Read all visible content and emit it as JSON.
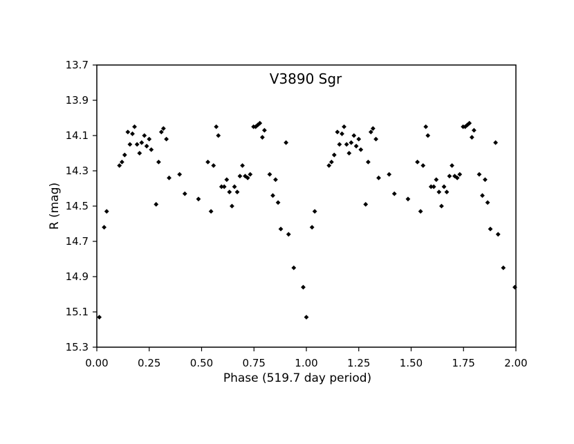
{
  "chart_data": {
    "type": "scatter",
    "title": "V3890 Sgr",
    "xlabel": "Phase (519.7 day period)",
    "ylabel": "R (mag)",
    "xlim": [
      0,
      2
    ],
    "ylim": [
      13.7,
      15.3
    ],
    "y_inverted": true,
    "grid": false,
    "legend": "none",
    "marker": "diamond",
    "marker_color": "#000000",
    "x_ticks": [
      "0.00",
      "0.25",
      "0.50",
      "0.75",
      "1.00",
      "1.25",
      "1.50",
      "1.75",
      "2.00"
    ],
    "y_ticks": [
      "13.7",
      "13.9",
      "14.1",
      "14.3",
      "14.5",
      "14.7",
      "14.9",
      "15.1",
      "15.3"
    ],
    "series": [
      {
        "points": [
          [
            0.012,
            15.13
          ],
          [
            0.035,
            14.62
          ],
          [
            0.047,
            14.53
          ],
          [
            0.108,
            14.27
          ],
          [
            0.12,
            14.25
          ],
          [
            0.133,
            14.21
          ],
          [
            0.148,
            14.08
          ],
          [
            0.158,
            14.15
          ],
          [
            0.17,
            14.09
          ],
          [
            0.18,
            14.05
          ],
          [
            0.192,
            14.15
          ],
          [
            0.204,
            14.2
          ],
          [
            0.214,
            14.14
          ],
          [
            0.227,
            14.1
          ],
          [
            0.238,
            14.16
          ],
          [
            0.25,
            14.12
          ],
          [
            0.26,
            14.18
          ],
          [
            0.283,
            14.49
          ],
          [
            0.295,
            14.25
          ],
          [
            0.308,
            14.08
          ],
          [
            0.318,
            14.06
          ],
          [
            0.332,
            14.12
          ],
          [
            0.345,
            14.34
          ],
          [
            0.395,
            14.32
          ],
          [
            0.42,
            14.43
          ],
          [
            0.485,
            14.46
          ],
          [
            0.53,
            14.25
          ],
          [
            0.545,
            14.53
          ],
          [
            0.557,
            14.27
          ],
          [
            0.57,
            14.05
          ],
          [
            0.58,
            14.1
          ],
          [
            0.595,
            14.39
          ],
          [
            0.608,
            14.39
          ],
          [
            0.62,
            14.35
          ],
          [
            0.633,
            14.42
          ],
          [
            0.645,
            14.5
          ],
          [
            0.657,
            14.39
          ],
          [
            0.67,
            14.42
          ],
          [
            0.683,
            14.33
          ],
          [
            0.695,
            14.27
          ],
          [
            0.708,
            14.33
          ],
          [
            0.72,
            14.34
          ],
          [
            0.732,
            14.32
          ],
          [
            0.748,
            14.05
          ],
          [
            0.758,
            14.05
          ],
          [
            0.768,
            14.04
          ],
          [
            0.778,
            14.03
          ],
          [
            0.79,
            14.11
          ],
          [
            0.8,
            14.07
          ],
          [
            0.825,
            14.32
          ],
          [
            0.84,
            14.44
          ],
          [
            0.853,
            14.35
          ],
          [
            0.865,
            14.48
          ],
          [
            0.878,
            14.63
          ],
          [
            0.903,
            14.14
          ],
          [
            0.915,
            14.66
          ],
          [
            0.94,
            14.85
          ],
          [
            0.985,
            14.96
          ],
          [
            1.0,
            15.13
          ],
          [
            1.027,
            14.62
          ],
          [
            1.04,
            14.53
          ],
          [
            1.108,
            14.27
          ],
          [
            1.12,
            14.25
          ],
          [
            1.133,
            14.21
          ],
          [
            1.148,
            14.08
          ],
          [
            1.158,
            14.15
          ],
          [
            1.17,
            14.09
          ],
          [
            1.18,
            14.05
          ],
          [
            1.192,
            14.15
          ],
          [
            1.204,
            14.2
          ],
          [
            1.214,
            14.14
          ],
          [
            1.227,
            14.1
          ],
          [
            1.238,
            14.16
          ],
          [
            1.25,
            14.12
          ],
          [
            1.26,
            14.18
          ],
          [
            1.283,
            14.49
          ],
          [
            1.295,
            14.25
          ],
          [
            1.308,
            14.08
          ],
          [
            1.318,
            14.06
          ],
          [
            1.332,
            14.12
          ],
          [
            1.345,
            14.34
          ],
          [
            1.395,
            14.32
          ],
          [
            1.42,
            14.43
          ],
          [
            1.485,
            14.46
          ],
          [
            1.53,
            14.25
          ],
          [
            1.545,
            14.53
          ],
          [
            1.557,
            14.27
          ],
          [
            1.57,
            14.05
          ],
          [
            1.58,
            14.1
          ],
          [
            1.595,
            14.39
          ],
          [
            1.608,
            14.39
          ],
          [
            1.62,
            14.35
          ],
          [
            1.633,
            14.42
          ],
          [
            1.645,
            14.5
          ],
          [
            1.657,
            14.39
          ],
          [
            1.67,
            14.42
          ],
          [
            1.683,
            14.33
          ],
          [
            1.695,
            14.27
          ],
          [
            1.708,
            14.33
          ],
          [
            1.72,
            14.34
          ],
          [
            1.732,
            14.32
          ],
          [
            1.748,
            14.05
          ],
          [
            1.758,
            14.05
          ],
          [
            1.768,
            14.04
          ],
          [
            1.778,
            14.03
          ],
          [
            1.79,
            14.11
          ],
          [
            1.8,
            14.07
          ],
          [
            1.825,
            14.32
          ],
          [
            1.84,
            14.44
          ],
          [
            1.853,
            14.35
          ],
          [
            1.865,
            14.48
          ],
          [
            1.878,
            14.63
          ],
          [
            1.903,
            14.14
          ],
          [
            1.915,
            14.66
          ],
          [
            1.94,
            14.85
          ],
          [
            1.995,
            14.96
          ]
        ]
      }
    ]
  }
}
